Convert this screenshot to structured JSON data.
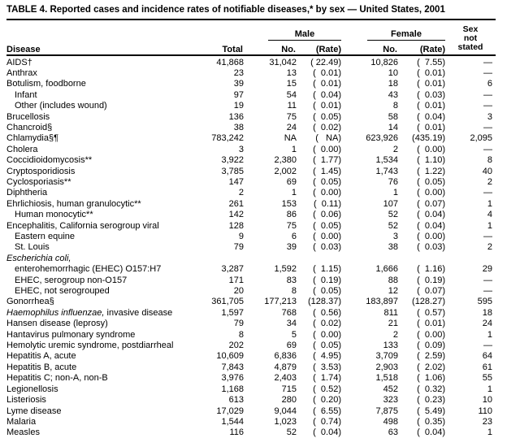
{
  "title": "TABLE 4. Reported cases and incidence rates of notifiable diseases,* by sex — United States, 2001",
  "table": {
    "columns": {
      "disease": "Disease",
      "total": "Total",
      "male": "Male",
      "female": "Female",
      "no": "No.",
      "rate": "(Rate)",
      "sex_not_stated": "Sex\nnot\nstated"
    },
    "rows": [
      {
        "disease": "AIDS†",
        "total": "41,868",
        "male_no": "31,042",
        "male_rate": "( 22.49)",
        "female_no": "10,826",
        "female_rate": "(  7.55)",
        "sex_not_stated": "—"
      },
      {
        "disease": "Anthrax",
        "total": "23",
        "male_no": "13",
        "male_rate": "(  0.01)",
        "female_no": "10",
        "female_rate": "(  0.01)",
        "sex_not_stated": "—"
      },
      {
        "disease": "Botulism, foodborne",
        "total": "39",
        "male_no": "15",
        "male_rate": "(  0.01)",
        "female_no": "18",
        "female_rate": "(  0.01)",
        "sex_not_stated": "6"
      },
      {
        "disease": "Infant",
        "indent": 1,
        "total": "97",
        "male_no": "54",
        "male_rate": "(  0.04)",
        "female_no": "43",
        "female_rate": "(  0.03)",
        "sex_not_stated": "—"
      },
      {
        "disease": "Other (includes wound)",
        "indent": 1,
        "total": "19",
        "male_no": "11",
        "male_rate": "(  0.01)",
        "female_no": "8",
        "female_rate": "(  0.01)",
        "sex_not_stated": "—"
      },
      {
        "disease": "Brucellosis",
        "total": "136",
        "male_no": "75",
        "male_rate": "(  0.05)",
        "female_no": "58",
        "female_rate": "(  0.04)",
        "sex_not_stated": "3"
      },
      {
        "disease": "Chancroid§",
        "total": "38",
        "male_no": "24",
        "male_rate": "(  0.02)",
        "female_no": "14",
        "female_rate": "(  0.01)",
        "sex_not_stated": "—"
      },
      {
        "disease": "Chlamydia§¶",
        "total": "783,242",
        "male_no": "NA",
        "male_rate": "(   NA)",
        "female_no": "623,926",
        "female_rate": "(435.19)",
        "sex_not_stated": "2,095"
      },
      {
        "disease": "Cholera",
        "total": "3",
        "male_no": "1",
        "male_rate": "(  0.00)",
        "female_no": "2",
        "female_rate": "(  0.00)",
        "sex_not_stated": "—"
      },
      {
        "disease": "Coccidioidomycosis**",
        "total": "3,922",
        "male_no": "2,380",
        "male_rate": "(  1.77)",
        "female_no": "1,534",
        "female_rate": "(  1.10)",
        "sex_not_stated": "8"
      },
      {
        "disease": "Cryptosporidiosis",
        "total": "3,785",
        "male_no": "2,002",
        "male_rate": "(  1.45)",
        "female_no": "1,743",
        "female_rate": "(  1.22)",
        "sex_not_stated": "40"
      },
      {
        "disease": "Cyclosporiasis**",
        "total": "147",
        "male_no": "69",
        "male_rate": "(  0.05)",
        "female_no": "76",
        "female_rate": "(  0.05)",
        "sex_not_stated": "2"
      },
      {
        "disease": "Diphtheria",
        "total": "2",
        "male_no": "1",
        "male_rate": "(  0.00)",
        "female_no": "1",
        "female_rate": "(  0.00)",
        "sex_not_stated": "—"
      },
      {
        "disease": "Ehrlichiosis, human granulocytic**",
        "total": "261",
        "male_no": "153",
        "male_rate": "(  0.11)",
        "female_no": "107",
        "female_rate": "(  0.07)",
        "sex_not_stated": "1"
      },
      {
        "disease": "Human monocytic**",
        "indent": 1,
        "total": "142",
        "male_no": "86",
        "male_rate": "(  0.06)",
        "female_no": "52",
        "female_rate": "(  0.04)",
        "sex_not_stated": "4"
      },
      {
        "disease": "Encephalitis, California serogroup viral",
        "total": "128",
        "male_no": "75",
        "male_rate": "(  0.05)",
        "female_no": "52",
        "female_rate": "(  0.04)",
        "sex_not_stated": "1"
      },
      {
        "disease": "Eastern equine",
        "indent": 1,
        "total": "9",
        "male_no": "6",
        "male_rate": "(  0.00)",
        "female_no": "3",
        "female_rate": "(  0.00)",
        "sex_not_stated": "—"
      },
      {
        "disease": "St. Louis",
        "indent": 1,
        "total": "79",
        "male_no": "39",
        "male_rate": "(  0.03)",
        "female_no": "38",
        "female_rate": "(  0.03)",
        "sex_not_stated": "2"
      },
      {
        "italic_part": "Escherichia coli,",
        "disease": "",
        "total": "",
        "male_no": "",
        "male_rate": "",
        "female_no": "",
        "female_rate": "",
        "sex_not_stated": ""
      },
      {
        "disease": "enterohemorrhagic (EHEC) O157:H7",
        "indent": 1,
        "total": "3,287",
        "male_no": "1,592",
        "male_rate": "(  1.15)",
        "female_no": "1,666",
        "female_rate": "(  1.16)",
        "sex_not_stated": "29"
      },
      {
        "disease": "EHEC, serogroup non-O157",
        "indent": 1,
        "total": "171",
        "male_no": "83",
        "male_rate": "(  0.19)",
        "female_no": "88",
        "female_rate": "(  0.19)",
        "sex_not_stated": "—"
      },
      {
        "disease": "EHEC, not serogrouped",
        "indent": 1,
        "total": "20",
        "male_no": "8",
        "male_rate": "(  0.05)",
        "female_no": "12",
        "female_rate": "(  0.07)",
        "sex_not_stated": "—"
      },
      {
        "disease": "Gonorrhea§",
        "total": "361,705",
        "male_no": "177,213",
        "male_rate": "(128.37)",
        "female_no": "183,897",
        "female_rate": "(128.27)",
        "sex_not_stated": "595"
      },
      {
        "italic_part": "Haemophilus influenzae,",
        "disease": " invasive disease",
        "total": "1,597",
        "male_no": "768",
        "male_rate": "(  0.56)",
        "female_no": "811",
        "female_rate": "(  0.57)",
        "sex_not_stated": "18"
      },
      {
        "disease": "Hansen disease (leprosy)",
        "total": "79",
        "male_no": "34",
        "male_rate": "(  0.02)",
        "female_no": "21",
        "female_rate": "(  0.01)",
        "sex_not_stated": "24"
      },
      {
        "disease": "Hantavirus pulmonary syndrome",
        "total": "8",
        "male_no": "5",
        "male_rate": "(  0.00)",
        "female_no": "2",
        "female_rate": "(  0.00)",
        "sex_not_stated": "1"
      },
      {
        "disease": "Hemolytic uremic syndrome, postdiarrheal",
        "total": "202",
        "male_no": "69",
        "male_rate": "(  0.05)",
        "female_no": "133",
        "female_rate": "(  0.09)",
        "sex_not_stated": "—"
      },
      {
        "disease": "Hepatitis A, acute",
        "total": "10,609",
        "male_no": "6,836",
        "male_rate": "(  4.95)",
        "female_no": "3,709",
        "female_rate": "(  2.59)",
        "sex_not_stated": "64"
      },
      {
        "disease": "Hepatitis B, acute",
        "total": "7,843",
        "male_no": "4,879",
        "male_rate": "(  3.53)",
        "female_no": "2,903",
        "female_rate": "(  2.02)",
        "sex_not_stated": "61"
      },
      {
        "disease": "Hepatitis C; non-A, non-B",
        "total": "3,976",
        "male_no": "2,403",
        "male_rate": "(  1.74)",
        "female_no": "1,518",
        "female_rate": "(  1.06)",
        "sex_not_stated": "55"
      },
      {
        "disease": "Legionellosis",
        "total": "1,168",
        "male_no": "715",
        "male_rate": "(  0.52)",
        "female_no": "452",
        "female_rate": "(  0.32)",
        "sex_not_stated": "1"
      },
      {
        "disease": "Listeriosis",
        "total": "613",
        "male_no": "280",
        "male_rate": "(  0.20)",
        "female_no": "323",
        "female_rate": "(  0.23)",
        "sex_not_stated": "10"
      },
      {
        "disease": "Lyme disease",
        "total": "17,029",
        "male_no": "9,044",
        "male_rate": "(  6.55)",
        "female_no": "7,875",
        "female_rate": "(  5.49)",
        "sex_not_stated": "110"
      },
      {
        "disease": "Malaria",
        "total": "1,544",
        "male_no": "1,023",
        "male_rate": "(  0.74)",
        "female_no": "498",
        "female_rate": "(  0.35)",
        "sex_not_stated": "23"
      },
      {
        "disease": "Measles",
        "total": "116",
        "male_no": "52",
        "male_rate": "(  0.04)",
        "female_no": "63",
        "female_rate": "(  0.04)",
        "sex_not_stated": "1"
      }
    ]
  }
}
